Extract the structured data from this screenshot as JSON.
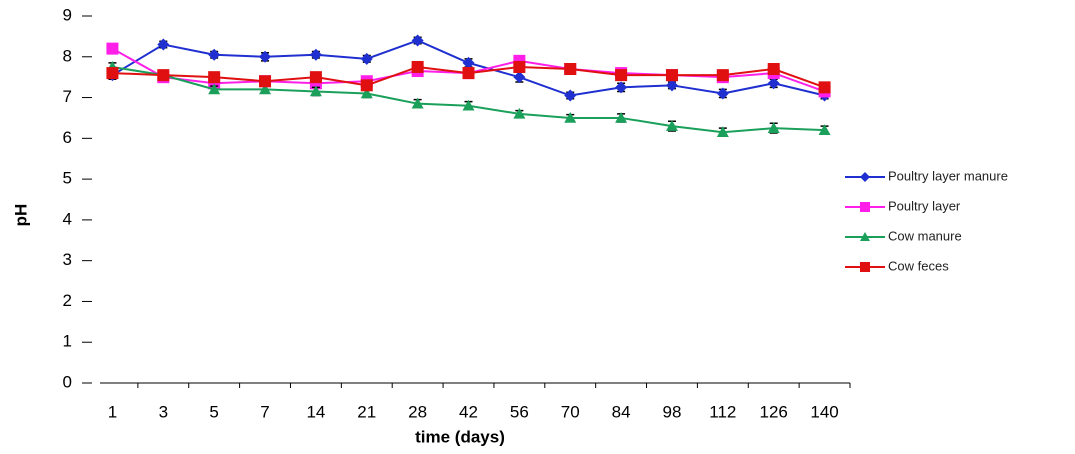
{
  "chart_data": {
    "type": "line",
    "x_label": "time (days)",
    "y_label": "pH",
    "categories": [
      "1",
      "3",
      "5",
      "7",
      "14",
      "21",
      "28",
      "42",
      "56",
      "70",
      "84",
      "98",
      "112",
      "126",
      "140"
    ],
    "ylim": [
      0,
      9
    ],
    "yticks": [
      0,
      1,
      2,
      3,
      4,
      5,
      6,
      7,
      8,
      9
    ],
    "series": [
      {
        "name": "Poultry layer manure",
        "color": "#1f2fd0",
        "marker": "diamond",
        "values": [
          7.55,
          8.3,
          8.05,
          8.0,
          8.05,
          7.95,
          8.4,
          7.85,
          7.5,
          7.05,
          7.25,
          7.3,
          7.1,
          7.35,
          7.05
        ],
        "errors": [
          0.1,
          0.08,
          0.08,
          0.1,
          0.08,
          0.08,
          0.08,
          0.1,
          0.12,
          0.08,
          0.1,
          0.08,
          0.1,
          0.1,
          0.08
        ]
      },
      {
        "name": "Poultry layer",
        "color": "#ff1fe8",
        "marker": "square",
        "values": [
          8.2,
          7.5,
          7.35,
          7.4,
          7.35,
          7.4,
          7.65,
          7.6,
          7.9,
          7.7,
          7.6,
          7.55,
          7.5,
          7.6,
          7.15
        ],
        "errors": [
          0.08,
          0.08,
          0.08,
          0.08,
          0.08,
          0.08,
          0.08,
          0.08,
          0.08,
          0.08,
          0.08,
          0.08,
          0.08,
          0.08,
          0.08
        ]
      },
      {
        "name": "Cow manure",
        "color": "#1aa05a",
        "marker": "triangle",
        "values": [
          7.75,
          7.55,
          7.2,
          7.2,
          7.15,
          7.1,
          6.85,
          6.8,
          6.6,
          6.5,
          6.5,
          6.3,
          6.15,
          6.25,
          6.2
        ],
        "errors": [
          0.1,
          0.08,
          0.08,
          0.08,
          0.1,
          0.1,
          0.1,
          0.1,
          0.08,
          0.08,
          0.1,
          0.12,
          0.1,
          0.12,
          0.1
        ]
      },
      {
        "name": "Cow feces",
        "color": "#e01010",
        "marker": "square",
        "values": [
          7.6,
          7.55,
          7.5,
          7.4,
          7.5,
          7.3,
          7.75,
          7.6,
          7.75,
          7.7,
          7.55,
          7.55,
          7.55,
          7.7,
          7.25
        ],
        "errors": [
          0.08,
          0.08,
          0.08,
          0.08,
          0.08,
          0.08,
          0.08,
          0.08,
          0.08,
          0.08,
          0.08,
          0.08,
          0.08,
          0.08,
          0.08
        ]
      }
    ]
  }
}
